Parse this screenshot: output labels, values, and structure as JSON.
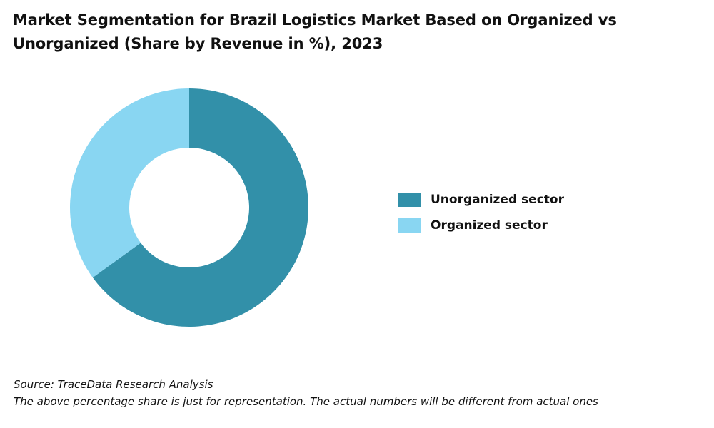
{
  "colors": {
    "unorganized": "#3290A9",
    "organized": "#89D6F2"
  },
  "chart_data": {
    "type": "pie",
    "style": "donut",
    "title": "Market Segmentation for Brazil Logistics Market Based on Organized vs Unorganized (Share by Revenue in %), 2023",
    "categories": [
      "Unorganized sector",
      "Organized sector"
    ],
    "values": [
      65,
      35
    ],
    "legend_position": "right",
    "data_labels": false
  },
  "footer": {
    "source": "Source: TraceData Research Analysis",
    "note": "The above percentage share is just for representation. The actual numbers will be different from actual ones"
  }
}
